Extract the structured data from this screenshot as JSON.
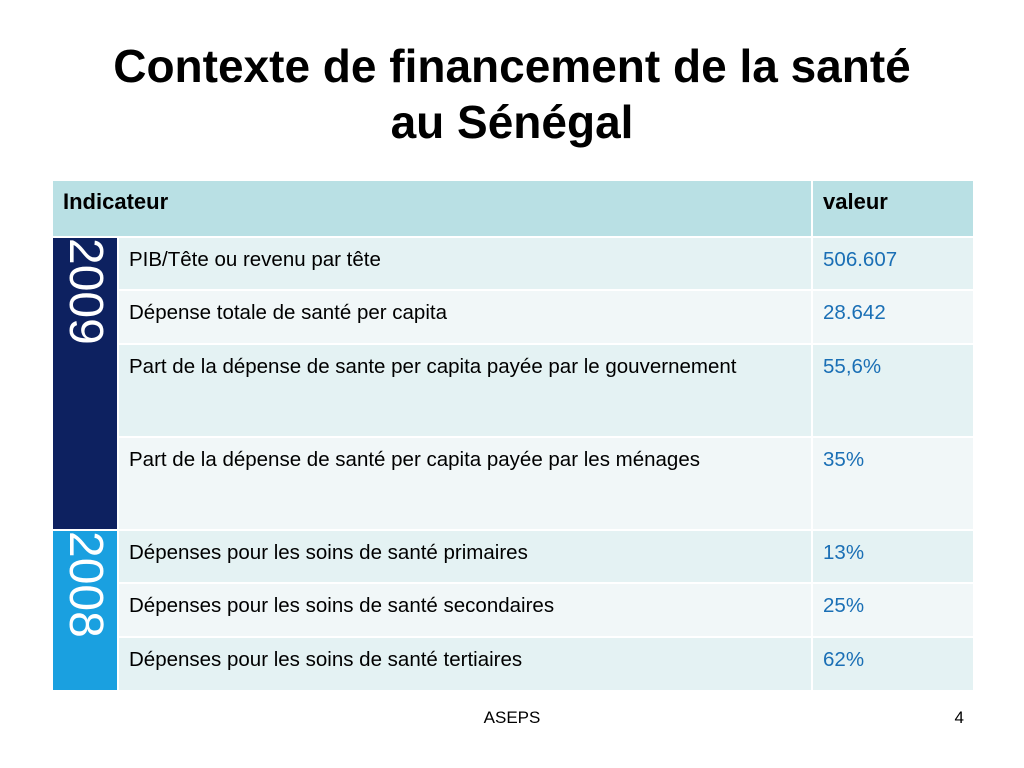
{
  "slide": {
    "title_line1": "Contexte de financement de la santé",
    "title_line2": "au Sénégal",
    "footer_center": "ASEPS",
    "page_number": "4"
  },
  "table": {
    "headers": {
      "indicator": "Indicateur",
      "value": "valeur"
    },
    "groups": [
      {
        "year": "2009",
        "color": "#0d2160",
        "rows": [
          {
            "indicator": "PIB/Tête ou revenu par tête",
            "value": "506.607"
          },
          {
            "indicator": "Dépense totale de santé per capita",
            "value": "28.642"
          },
          {
            "indicator": "Part de la dépense de sante per capita payée par le gouvernement",
            "value": "55,6%"
          },
          {
            "indicator": "Part de la dépense de santé per capita payée par les ménages",
            "value": "35%"
          }
        ]
      },
      {
        "year": "2008",
        "color": "#1aa0e0",
        "rows": [
          {
            "indicator": "Dépenses pour les soins de santé primaires",
            "value": "13%"
          },
          {
            "indicator": "Dépenses pour les soins de santé secondaires",
            "value": "25%"
          },
          {
            "indicator": "Dépenses pour les soins de santé tertiaires",
            "value": "62%"
          }
        ]
      }
    ]
  }
}
